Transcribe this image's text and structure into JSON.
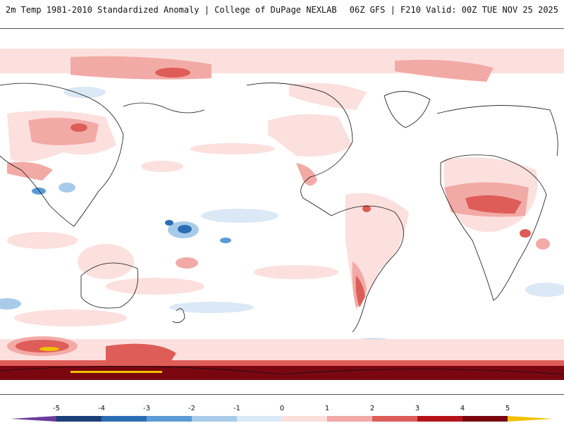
{
  "header": {
    "title": "2m Temp 1981-2010 Standardized Anomaly | College of DuPage NEXLAB",
    "run_info": "06Z GFS | F210 Valid: 00Z TUE NOV 25 2025"
  },
  "legend": {
    "ticks": [
      "-5",
      "-4",
      "-3",
      "-2",
      "-1",
      "0",
      "1",
      "2",
      "3",
      "4",
      "5"
    ],
    "colors": {
      "below_min": "#6a3d9a",
      "m5": "#1d3f7a",
      "m4": "#2a6db5",
      "m3": "#5b9bd5",
      "m2": "#a9cbea",
      "m1": "#dbe8f5",
      "zero": "#ffffff",
      "p1": "#fbe0de",
      "p2": "#f2aaa6",
      "p3": "#de5d58",
      "p4": "#b5141b",
      "p5": "#7a0710",
      "above_max": "#f2c200"
    }
  },
  "map": {
    "projection": "global equirectangular, Pacific centered",
    "field": "2m temperature standardized anomaly"
  }
}
